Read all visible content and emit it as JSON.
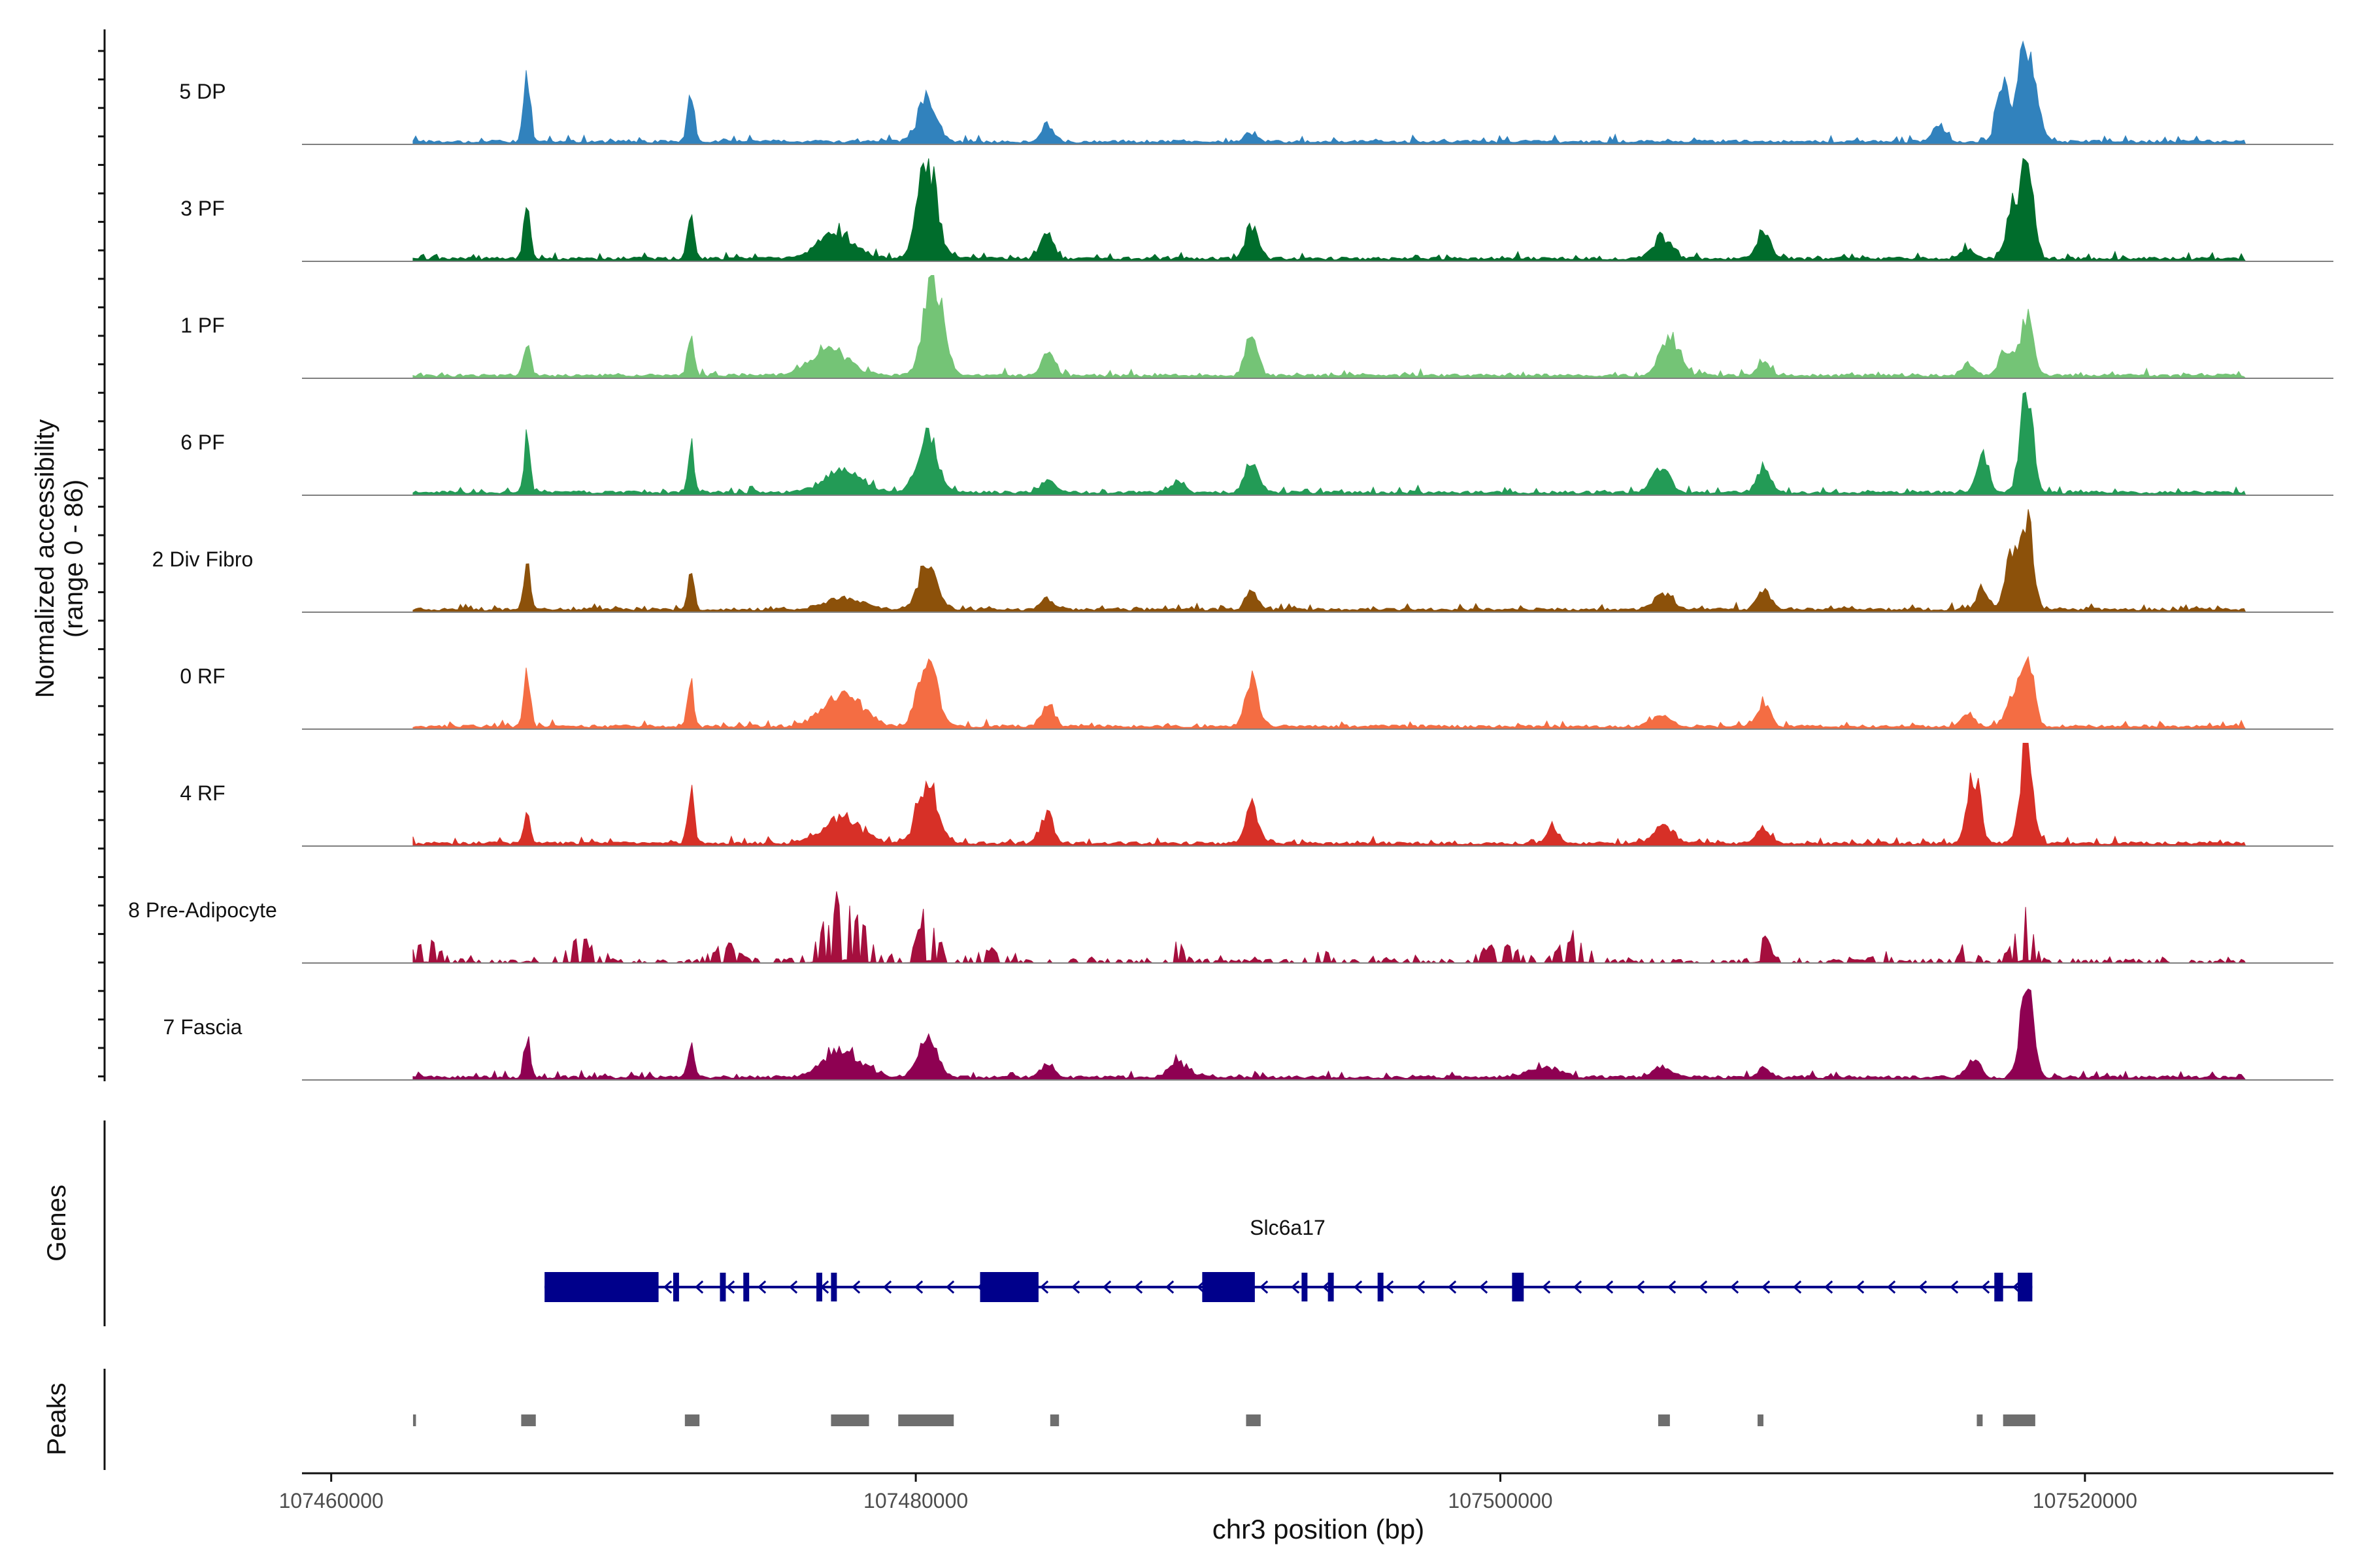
{
  "chart_data": {
    "type": "area",
    "title": "",
    "ylabel_line1": "Normalized accessibility",
    "ylabel_line2": "(range 0 - 86)",
    "y_range": [
      0,
      86
    ],
    "xlabel": "chr3 position (bp)",
    "xlim": [
      107459000,
      107528500
    ],
    "x_ticks": [
      107460000,
      107480000,
      107500000,
      107520000
    ],
    "x_tick_labels": [
      "107460000",
      "107480000",
      "107500000",
      "107520000"
    ],
    "tracks": [
      {
        "name": "5 DP",
        "color": "#3182bd",
        "max": 0.55,
        "peaks": [
          [
            107466700,
            0.8,
            1
          ],
          [
            107472300,
            0.55,
            1
          ],
          [
            107480400,
            0.45,
            3
          ],
          [
            107484500,
            0.18,
            2
          ],
          [
            107491500,
            0.1,
            2
          ],
          [
            107515000,
            0.18,
            2
          ],
          [
            107517200,
            0.6,
            2
          ],
          [
            107517900,
            0.95,
            2
          ],
          [
            107518300,
            0.4,
            2
          ]
        ]
      },
      {
        "name": "3 PF",
        "color": "#006d2c",
        "max": 0.9,
        "peaks": [
          [
            107466700,
            0.55,
            1
          ],
          [
            107472300,
            0.55,
            1
          ],
          [
            107477300,
            0.25,
            6
          ],
          [
            107480400,
            1.0,
            3
          ],
          [
            107484500,
            0.25,
            2
          ],
          [
            107491500,
            0.35,
            2
          ],
          [
            107505500,
            0.22,
            3
          ],
          [
            107509000,
            0.3,
            2
          ],
          [
            107516000,
            0.1,
            2
          ],
          [
            107517500,
            0.45,
            2
          ],
          [
            107518000,
            1.0,
            2
          ]
        ]
      },
      {
        "name": "1 PF",
        "color": "#74c476",
        "max": 0.9,
        "peaks": [
          [
            107466700,
            0.4,
            1
          ],
          [
            107472300,
            0.45,
            1
          ],
          [
            107477000,
            0.28,
            6
          ],
          [
            107480600,
            1.0,
            3
          ],
          [
            107484500,
            0.25,
            2
          ],
          [
            107491500,
            0.4,
            2
          ],
          [
            107505800,
            0.38,
            3
          ],
          [
            107509000,
            0.15,
            2
          ],
          [
            107516000,
            0.12,
            2
          ],
          [
            107517300,
            0.3,
            2
          ],
          [
            107518000,
            0.65,
            2
          ]
        ]
      },
      {
        "name": "6 PF",
        "color": "#239b56",
        "max": 0.75,
        "peaks": [
          [
            107466700,
            0.55,
            1
          ],
          [
            107472300,
            0.5,
            1
          ],
          [
            107477500,
            0.2,
            6
          ],
          [
            107480400,
            0.65,
            3
          ],
          [
            107484500,
            0.15,
            2
          ],
          [
            107489000,
            0.12,
            2
          ],
          [
            107491500,
            0.35,
            2
          ],
          [
            107505500,
            0.22,
            3
          ],
          [
            107509000,
            0.3,
            2
          ],
          [
            107516500,
            0.35,
            2
          ],
          [
            107518000,
            1.0,
            2
          ]
        ]
      },
      {
        "name": "2 Div Fibro",
        "color": "#8c510a",
        "max": 0.8,
        "peaks": [
          [
            107466700,
            0.45,
            1
          ],
          [
            107472300,
            0.4,
            1
          ],
          [
            107477500,
            0.12,
            6
          ],
          [
            107480400,
            0.45,
            3
          ],
          [
            107484500,
            0.1,
            2
          ],
          [
            107491500,
            0.18,
            2
          ],
          [
            107505600,
            0.15,
            3
          ],
          [
            107509000,
            0.2,
            2
          ],
          [
            107516500,
            0.2,
            2
          ],
          [
            107517500,
            0.55,
            2
          ],
          [
            107518000,
            0.95,
            2
          ]
        ]
      },
      {
        "name": "0 RF",
        "color": "#f46d43",
        "max": 0.8,
        "peaks": [
          [
            107466700,
            0.6,
            1
          ],
          [
            107472300,
            0.4,
            1
          ],
          [
            107477500,
            0.35,
            6
          ],
          [
            107480400,
            0.65,
            3
          ],
          [
            107484500,
            0.25,
            2
          ],
          [
            107491500,
            0.5,
            2
          ],
          [
            107505500,
            0.12,
            3
          ],
          [
            107509000,
            0.25,
            2
          ],
          [
            107516000,
            0.12,
            2
          ],
          [
            107517500,
            0.25,
            2
          ],
          [
            107518000,
            0.8,
            2
          ]
        ]
      },
      {
        "name": "4 RF",
        "color": "#d73027",
        "max": 0.85,
        "peaks": [
          [
            107466700,
            0.35,
            1
          ],
          [
            107472300,
            0.6,
            1
          ],
          [
            107477500,
            0.25,
            6
          ],
          [
            107480400,
            0.7,
            3
          ],
          [
            107484500,
            0.3,
            2
          ],
          [
            107491500,
            0.4,
            2
          ],
          [
            107501800,
            0.15,
            2
          ],
          [
            107505600,
            0.18,
            3
          ],
          [
            107509000,
            0.15,
            2
          ],
          [
            107516200,
            0.75,
            2
          ],
          [
            107518000,
            1.0,
            2
          ]
        ]
      },
      {
        "name": "8 Pre-Adipocyte",
        "color": "#a50f3e",
        "max": 0.7,
        "peaks": [
          [
            107463200,
            0.2,
            4
          ],
          [
            107466700,
            0.45,
            1
          ],
          [
            107468500,
            0.2,
            4
          ],
          [
            107473500,
            0.15,
            4
          ],
          [
            107477500,
            0.6,
            6
          ],
          [
            107480400,
            0.5,
            3
          ],
          [
            107482500,
            0.1,
            4
          ],
          [
            107489000,
            0.15,
            2
          ],
          [
            107494000,
            0.1,
            2
          ],
          [
            107500000,
            0.15,
            5
          ],
          [
            107502500,
            0.25,
            4
          ],
          [
            107509000,
            0.3,
            2
          ],
          [
            107513000,
            0.1,
            2
          ],
          [
            107516000,
            0.2,
            2
          ],
          [
            107517500,
            0.15,
            2
          ],
          [
            107518000,
            0.55,
            2
          ]
        ]
      },
      {
        "name": "7 Fascia",
        "color": "#8e0152",
        "max": 0.8,
        "peaks": [
          [
            107466700,
            0.4,
            1
          ],
          [
            107472300,
            0.35,
            1
          ],
          [
            107477500,
            0.28,
            6
          ],
          [
            107480400,
            0.4,
            3
          ],
          [
            107484500,
            0.15,
            2
          ],
          [
            107489000,
            0.15,
            3
          ],
          [
            107501500,
            0.1,
            5
          ],
          [
            107505500,
            0.12,
            3
          ],
          [
            107509000,
            0.1,
            2
          ],
          [
            107516200,
            0.2,
            2
          ],
          [
            107518000,
            1.0,
            2
          ]
        ]
      }
    ],
    "genes_label": "Genes",
    "gene": {
      "name": "Slc6a17",
      "strand": "-",
      "color": "#00008b",
      "start": 107467300,
      "end": 107518200,
      "exons": [
        [
          107467300,
          107471200
        ],
        [
          107471700,
          107471900
        ],
        [
          107473300,
          107473500
        ],
        [
          107474100,
          107474300
        ],
        [
          107476600,
          107476800
        ],
        [
          107477100,
          107477300
        ],
        [
          107482200,
          107484200
        ],
        [
          107489800,
          107491600
        ],
        [
          107493200,
          107493400
        ],
        [
          107494100,
          107494300
        ],
        [
          107495800,
          107496000
        ],
        [
          107500400,
          107500800
        ],
        [
          107516900,
          107517200
        ],
        [
          107517700,
          107518200
        ]
      ]
    },
    "peaks_label": "Peaks",
    "peak_color": "#6e6e6e",
    "peak_regions": [
      [
        107462800,
        107462900
      ],
      [
        107466500,
        107467000
      ],
      [
        107472100,
        107472600
      ],
      [
        107477100,
        107478400
      ],
      [
        107479400,
        107481300
      ],
      [
        107484600,
        107484900
      ],
      [
        107491300,
        107491800
      ],
      [
        107505400,
        107505800
      ],
      [
        107508800,
        107509000
      ],
      [
        107516300,
        107516500
      ],
      [
        107517200,
        107518300
      ]
    ]
  }
}
